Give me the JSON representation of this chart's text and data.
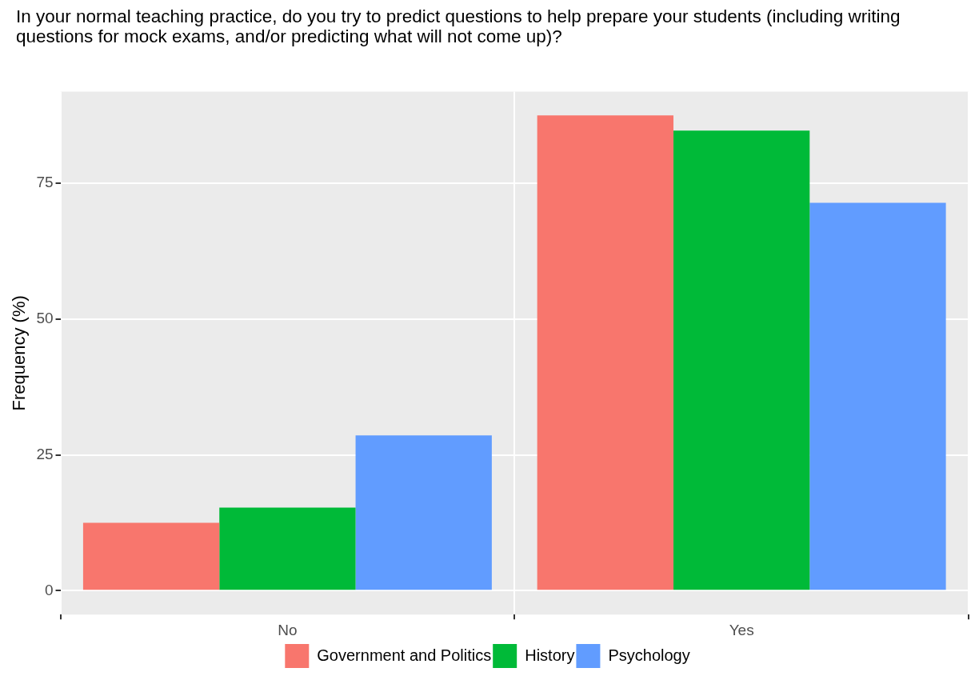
{
  "chart_data": {
    "type": "bar",
    "title": "In your normal teaching practice, do you try to predict questions to help prepare your students (including writing questions for mock exams, and/or predicting what will not come up)?",
    "ylabel": "Frequency (%)",
    "categories": [
      "No",
      "Yes"
    ],
    "series": [
      {
        "name": "Government and Politics",
        "color": "#f8766d",
        "values": [
          12.5,
          87.5
        ]
      },
      {
        "name": "History",
        "color": "#00ba38",
        "values": [
          15.3,
          84.7
        ]
      },
      {
        "name": "Psychology",
        "color": "#619cff",
        "values": [
          28.6,
          71.4
        ]
      }
    ],
    "ylim": [
      -4.4,
      91.9
    ],
    "yticks": [
      0,
      25,
      50,
      75
    ],
    "grid": true,
    "legend": "bottom"
  }
}
